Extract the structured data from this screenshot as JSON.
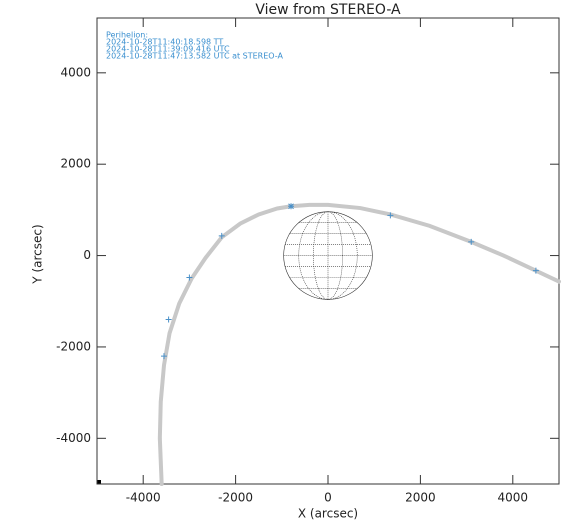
{
  "chart_data": {
    "type": "line",
    "title": "View from  STEREO-A",
    "xlabel": "X (arcsec)",
    "ylabel": "Y (arcsec)",
    "annotations": [
      "Perihelion:",
      "2024-10-28T11:40:18.598 TT",
      "2024-10-28T11:39:09.416 UTC",
      "2024-10-28T11:47:13.582 UTC at STEREO-A"
    ],
    "xlim": [
      -5000,
      5000
    ],
    "ylim": [
      -5000,
      5200
    ],
    "xticks": [
      -4000,
      -2000,
      0,
      2000,
      4000
    ],
    "yticks": [
      -4000,
      -2000,
      0,
      2000,
      4000
    ],
    "sun_radius": 960,
    "trajectory": {
      "color": "#c8c8c8",
      "x": [
        -3600,
        -3640,
        -3620,
        -3550,
        -3430,
        -3220,
        -2950,
        -2650,
        -2300,
        -1900,
        -1500,
        -1100,
        -800,
        -400,
        0,
        700,
        1350,
        2200,
        3100,
        3800,
        4500,
        5000
      ],
      "y": [
        -5000,
        -4000,
        -3200,
        -2400,
        -1700,
        -1050,
        -500,
        -50,
        400,
        700,
        900,
        1030,
        1080,
        1110,
        1110,
        1040,
        900,
        650,
        300,
        0,
        -330,
        -570
      ]
    },
    "time_ticks": {
      "color": "#4a90c8",
      "x": [
        -2300,
        -3000,
        -3450,
        -3550,
        1350,
        3100,
        4500
      ],
      "y": [
        430,
        -480,
        -1400,
        -2200,
        880,
        300,
        -330
      ]
    },
    "perihelion_point": {
      "color": "#4a90c8",
      "x": -800,
      "y": 1080
    }
  }
}
